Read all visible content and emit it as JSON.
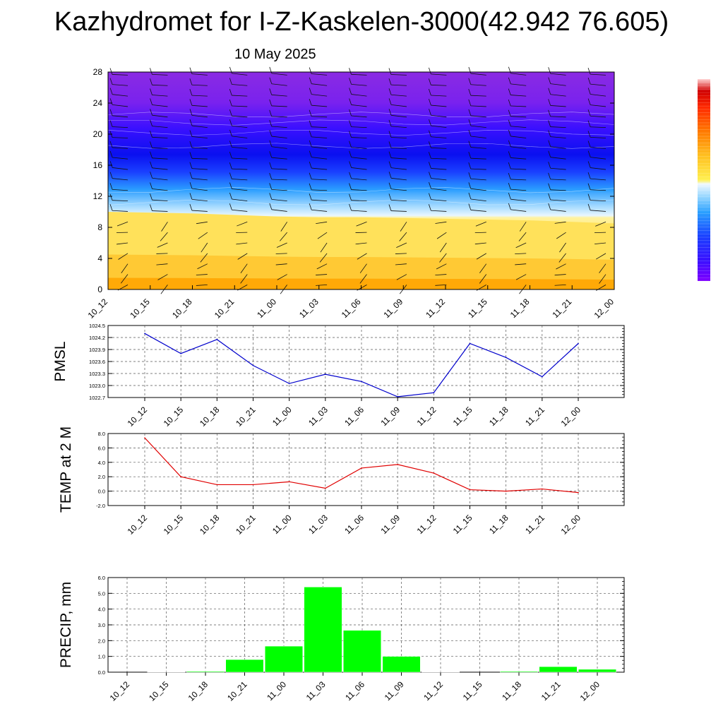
{
  "title": "Kazhydromet for I-Z-Kaskelen-3000(42.942 76.605)",
  "subtitle": "10 May 2025",
  "time_labels": [
    "10_12",
    "10_15",
    "10_18",
    "10_21",
    "11_00",
    "11_03",
    "11_06",
    "11_09",
    "11_12",
    "11_15",
    "11_18",
    "11_21",
    "12_00"
  ],
  "colors": {
    "pmsl_line": "#0000cc",
    "temp_line": "#e00000",
    "precip_bar": "#00ff00",
    "cross_section_top": "#8a2be2",
    "cross_section_mid": "#0000ff",
    "cross_section_bottom": "#ffa500"
  },
  "chart_data": [
    {
      "id": "cross_section",
      "type": "heatmap",
      "title": "",
      "ylabel": "",
      "ylim": [
        0,
        28
      ],
      "yticks": [
        0,
        4,
        8,
        12,
        16,
        20,
        24,
        28
      ],
      "x": [
        "10_12",
        "10_15",
        "10_18",
        "10_21",
        "11_00",
        "11_03",
        "11_06",
        "11_09",
        "11_12",
        "11_15",
        "11_18",
        "11_21",
        "12_00"
      ],
      "freezing_level": [
        10.0,
        9.9,
        9.8,
        9.6,
        9.4,
        9.3,
        9.3,
        9.2,
        9.1,
        9.0,
        8.9,
        8.7,
        8.5
      ],
      "colorbar_stops": [
        "#7f00ff",
        "#3a00ff",
        "#1010ff",
        "#2060ff",
        "#2aa0ff",
        "#9ad8ff",
        "#f0f0f0",
        "#ffe94a",
        "#ffbf20",
        "#ff8a00",
        "#ff3b00",
        "#d00000",
        "#ffffff"
      ],
      "wind_barbs": true
    },
    {
      "id": "pmsl",
      "type": "line",
      "ylabel": "PMSL",
      "ylim": [
        1022.7,
        1024.5
      ],
      "yticks": [
        "1022.7",
        "1023.0",
        "1023.3",
        "1023.6",
        "1023.9",
        "1024.2",
        "1024.5"
      ],
      "x": [
        "10_12",
        "10_15",
        "10_18",
        "10_21",
        "11_00",
        "11_03",
        "11_06",
        "11_09",
        "11_12",
        "11_15",
        "11_18",
        "11_21",
        "12_00"
      ],
      "values": [
        1024.3,
        1023.8,
        1024.15,
        1023.5,
        1023.05,
        1023.28,
        1023.1,
        1022.72,
        1022.82,
        1024.05,
        1023.7,
        1023.22,
        1024.05
      ]
    },
    {
      "id": "temp",
      "type": "line",
      "ylabel": "TEMP at 2 M",
      "ylim": [
        -2.0,
        8.0
      ],
      "yticks": [
        "-2.0",
        "0.0",
        "2.0",
        "4.0",
        "6.0",
        "8.0"
      ],
      "x": [
        "10_12",
        "10_15",
        "10_18",
        "10_21",
        "11_00",
        "11_03",
        "11_06",
        "11_09",
        "11_12",
        "11_15",
        "11_18",
        "11_21",
        "12_00"
      ],
      "values": [
        7.4,
        2.0,
        0.9,
        0.9,
        1.3,
        0.4,
        3.2,
        3.7,
        2.5,
        0.2,
        0.0,
        0.3,
        -0.2
      ]
    },
    {
      "id": "precip",
      "type": "bar",
      "ylabel": "PRECIP, mm",
      "ylim": [
        0.0,
        6.0
      ],
      "yticks": [
        "0.0",
        "1.0",
        "2.0",
        "3.0",
        "4.0",
        "5.0",
        "6.0"
      ],
      "categories": [
        "10_12",
        "10_15",
        "10_18",
        "10_21",
        "11_00",
        "11_03",
        "11_06",
        "11_09",
        "11_12",
        "11_15",
        "11_18",
        "11_21",
        "12_00"
      ],
      "values": [
        0.0,
        0.02,
        0.05,
        0.8,
        1.65,
        5.4,
        2.65,
        1.0,
        0.02,
        0.0,
        0.05,
        0.35,
        0.18
      ]
    }
  ]
}
